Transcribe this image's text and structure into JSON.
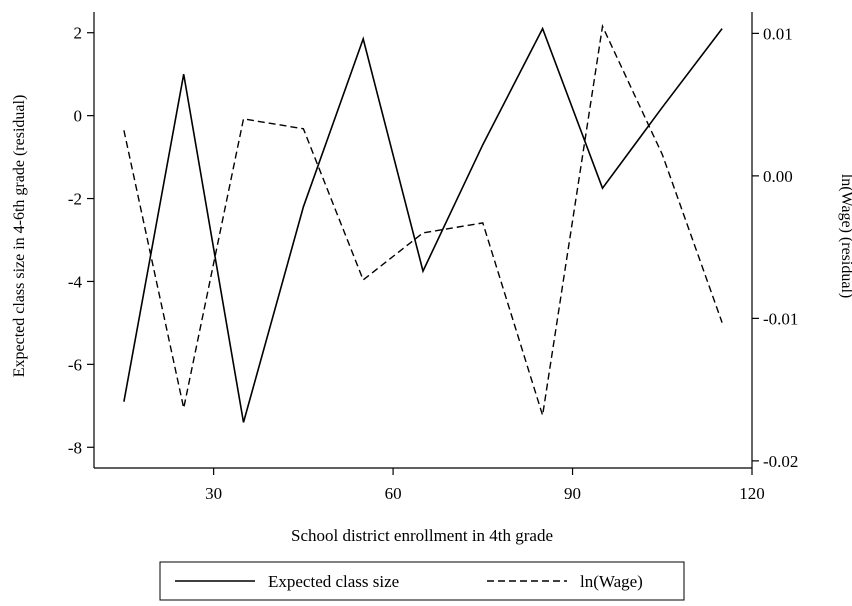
{
  "chart_data": {
    "type": "line",
    "title": "",
    "xlabel": "School district enrollment in 4th grade",
    "ylabel_left": "Expected class size in 4-6th grade (residual)",
    "ylabel_right": "ln(Wage) (residual)",
    "xlim": [
      10,
      120
    ],
    "ylim_left": [
      -8.5,
      2.5
    ],
    "ylim_right": [
      -0.0205,
      0.0115
    ],
    "xticks": [
      30,
      60,
      90,
      120
    ],
    "xtick_labels": [
      "30",
      "60",
      "90",
      "120"
    ],
    "yticks_left": [
      2,
      0,
      -2,
      -4,
      -6,
      -8
    ],
    "ytick_labels_left": [
      "2",
      "0",
      "-2",
      "-4",
      "-6",
      "-8"
    ],
    "yticks_right": [
      0.01,
      0.0,
      -0.01,
      -0.02
    ],
    "ytick_labels_right": [
      "0.01",
      "0.00",
      "-0.01",
      "-0.02"
    ],
    "grid": false,
    "legend_position": "bottom",
    "series": [
      {
        "name": "Expected class size",
        "axis": "left",
        "style": "solid",
        "color": "#000000",
        "x": [
          15,
          25,
          35,
          45,
          55,
          65,
          75,
          85,
          95,
          105,
          115
        ],
        "y": [
          -6.9,
          1.0,
          -7.4,
          -2.2,
          1.85,
          -3.75,
          -0.7,
          2.1,
          -1.75,
          0.2,
          2.1
        ]
      },
      {
        "name": "ln(Wage)",
        "axis": "right",
        "style": "dashed",
        "color": "#000000",
        "x": [
          15,
          25,
          35,
          45,
          55,
          65,
          75,
          85,
          95,
          105,
          115
        ],
        "y": [
          0.0032,
          -0.0163,
          0.004,
          0.0033,
          -0.0073,
          -0.004,
          -0.0033,
          -0.0168,
          0.0105,
          0.0015,
          -0.0103
        ]
      }
    ]
  }
}
